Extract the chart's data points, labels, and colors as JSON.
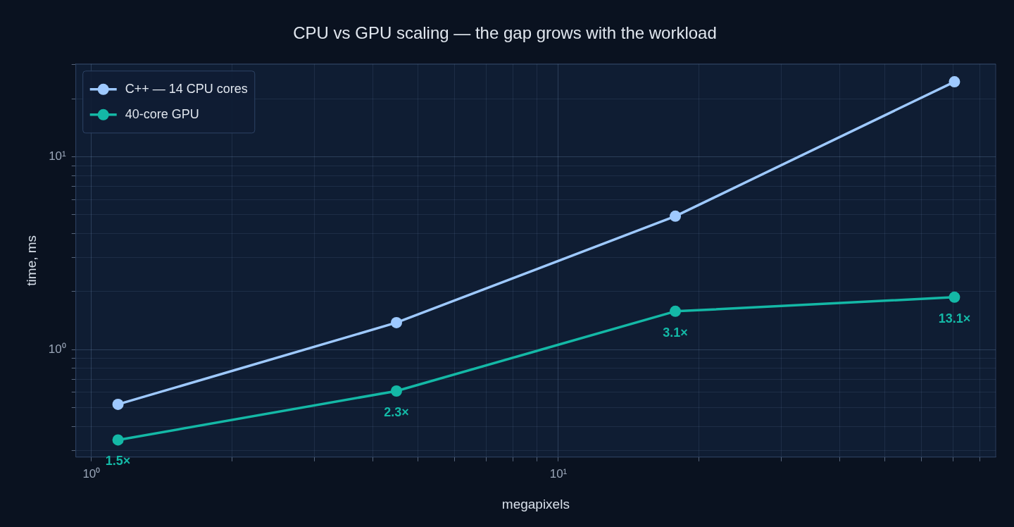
{
  "chart_data": {
    "type": "line",
    "title": "CPU vs GPU scaling — the gap grows with the workload",
    "xlabel": "megapixels",
    "ylabel": "time, ms",
    "log": "xy",
    "grid": true,
    "legend": "top left",
    "marker": "circle",
    "line_style": "solid",
    "xlim": [
      0.926,
      86.4
    ],
    "ylim": [
      0.277,
      30.3
    ],
    "xticks": [
      {
        "value": 1,
        "label": "10⁰"
      },
      {
        "value": 2,
        "label": null
      },
      {
        "value": 3,
        "label": null
      },
      {
        "value": 4,
        "label": null
      },
      {
        "value": 5,
        "label": null
      },
      {
        "value": 6,
        "label": null
      },
      {
        "value": 7,
        "label": null
      },
      {
        "value": 8,
        "label": null
      },
      {
        "value": 9,
        "label": null
      },
      {
        "value": 10,
        "label": "10¹"
      },
      {
        "value": 20,
        "label": null
      },
      {
        "value": 30,
        "label": null
      },
      {
        "value": 40,
        "label": null
      },
      {
        "value": 50,
        "label": null
      },
      {
        "value": 60,
        "label": null
      },
      {
        "value": 70,
        "label": null
      },
      {
        "value": 80,
        "label": null
      }
    ],
    "yticks": [
      {
        "value": 0.3,
        "label": null
      },
      {
        "value": 0.4,
        "label": null
      },
      {
        "value": 0.5,
        "label": null
      },
      {
        "value": 0.6,
        "label": null
      },
      {
        "value": 0.7,
        "label": null
      },
      {
        "value": 0.8,
        "label": null
      },
      {
        "value": 0.9,
        "label": null
      },
      {
        "value": 1,
        "label": "10⁰"
      },
      {
        "value": 2,
        "label": null
      },
      {
        "value": 3,
        "label": null
      },
      {
        "value": 4,
        "label": null
      },
      {
        "value": 5,
        "label": null
      },
      {
        "value": 6,
        "label": null
      },
      {
        "value": 7,
        "label": null
      },
      {
        "value": 8,
        "label": null
      },
      {
        "value": 9,
        "label": null
      },
      {
        "value": 10,
        "label": "10¹"
      },
      {
        "value": 20,
        "label": null
      },
      {
        "value": 30,
        "label": null
      }
    ],
    "x": [
      1.14,
      4.5,
      17.8,
      70.5
    ],
    "series": [
      {
        "name": "C++ — 14 CPU cores",
        "color": "#9ec9ff",
        "values": [
          0.52,
          1.38,
          4.92,
          24.5
        ]
      },
      {
        "name": "40-core GPU",
        "color": "#14b8a6",
        "values": [
          0.34,
          0.61,
          1.58,
          1.87
        ]
      }
    ],
    "annotations": [
      {
        "text": "1.5×",
        "x": 1.14,
        "y": 0.34
      },
      {
        "text": "2.3×",
        "x": 4.5,
        "y": 0.61
      },
      {
        "text": "3.1×",
        "x": 17.8,
        "y": 1.58
      },
      {
        "text": "13.1×",
        "x": 70.5,
        "y": 1.87
      }
    ]
  }
}
